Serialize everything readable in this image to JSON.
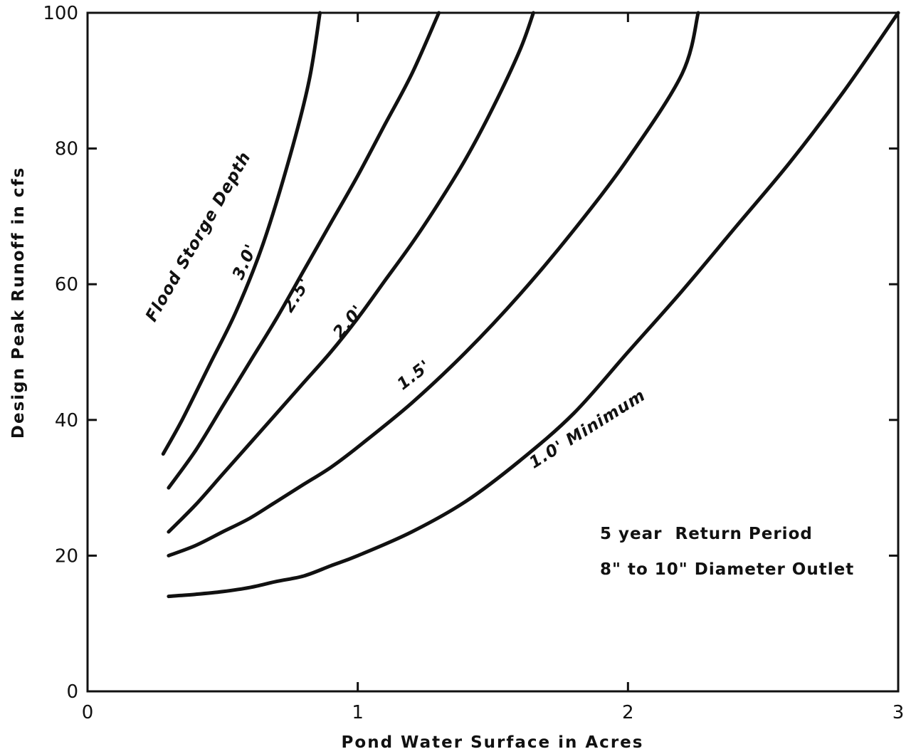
{
  "chart_data": {
    "type": "line",
    "title": "",
    "xlabel": "Pond Water Surface in Acres",
    "ylabel": "Design Peak Runoff in cfs",
    "xlim": [
      0,
      3
    ],
    "ylim": [
      0,
      100
    ],
    "xticks": [
      0,
      1,
      2,
      3
    ],
    "yticks": [
      0,
      20,
      40,
      60,
      80,
      100
    ],
    "grid": false,
    "legend": "none",
    "group_label": "Flood Storge Depth",
    "annotations": [
      "5 year  Return Period",
      "8\" to 10\" Diameter Outlet"
    ],
    "series": [
      {
        "name": "3.0'",
        "points": [
          [
            0.28,
            35
          ],
          [
            0.35,
            40
          ],
          [
            0.45,
            48
          ],
          [
            0.55,
            56
          ],
          [
            0.65,
            66
          ],
          [
            0.75,
            79
          ],
          [
            0.82,
            90
          ],
          [
            0.86,
            100
          ]
        ]
      },
      {
        "name": "2.5'",
        "points": [
          [
            0.3,
            30
          ],
          [
            0.4,
            35.5
          ],
          [
            0.5,
            42
          ],
          [
            0.6,
            48.5
          ],
          [
            0.7,
            55
          ],
          [
            0.8,
            62
          ],
          [
            0.9,
            69
          ],
          [
            1.0,
            76
          ],
          [
            1.1,
            83.5
          ],
          [
            1.2,
            91
          ],
          [
            1.3,
            100
          ]
        ]
      },
      {
        "name": "2.0'",
        "points": [
          [
            0.3,
            23.5
          ],
          [
            0.4,
            27.5
          ],
          [
            0.5,
            32
          ],
          [
            0.6,
            36.5
          ],
          [
            0.7,
            41
          ],
          [
            0.8,
            45.5
          ],
          [
            0.9,
            50
          ],
          [
            1.0,
            55
          ],
          [
            1.1,
            60.5
          ],
          [
            1.2,
            66
          ],
          [
            1.3,
            72
          ],
          [
            1.4,
            78.5
          ],
          [
            1.5,
            86
          ],
          [
            1.6,
            94.5
          ],
          [
            1.65,
            100
          ]
        ]
      },
      {
        "name": "1.5'",
        "points": [
          [
            0.3,
            20
          ],
          [
            0.4,
            21.5
          ],
          [
            0.5,
            23.5
          ],
          [
            0.6,
            25.5
          ],
          [
            0.7,
            28
          ],
          [
            0.8,
            30.5
          ],
          [
            0.9,
            33
          ],
          [
            1.0,
            36
          ],
          [
            1.2,
            42.5
          ],
          [
            1.4,
            50
          ],
          [
            1.6,
            58.5
          ],
          [
            1.8,
            68
          ],
          [
            2.0,
            78.5
          ],
          [
            2.2,
            91
          ],
          [
            2.26,
            100
          ]
        ]
      },
      {
        "name": "1.0' Minimum",
        "points": [
          [
            0.3,
            14
          ],
          [
            0.4,
            14.3
          ],
          [
            0.5,
            14.7
          ],
          [
            0.6,
            15.3
          ],
          [
            0.7,
            16.2
          ],
          [
            0.8,
            17
          ],
          [
            0.9,
            18.5
          ],
          [
            1.0,
            20
          ],
          [
            1.2,
            23.5
          ],
          [
            1.4,
            28
          ],
          [
            1.6,
            34
          ],
          [
            1.8,
            41
          ],
          [
            2.0,
            50
          ],
          [
            2.2,
            59
          ],
          [
            2.4,
            68.5
          ],
          [
            2.6,
            78
          ],
          [
            2.8,
            88.5
          ],
          [
            3.0,
            100
          ]
        ]
      }
    ]
  }
}
